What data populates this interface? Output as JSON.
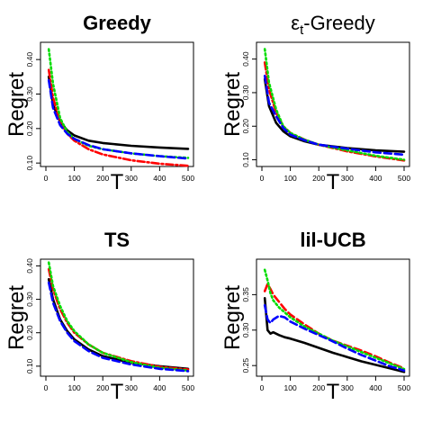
{
  "chart_data": [
    {
      "type": "line",
      "title": "Greedy",
      "xlabel": "T",
      "ylabel": "Regret",
      "xlim": [
        0,
        500
      ],
      "ylim": [
        0.09,
        0.45
      ],
      "xticks": [
        0,
        100,
        200,
        300,
        400,
        500
      ],
      "yticks": [
        0.1,
        0.2,
        0.3,
        0.4
      ],
      "x": [
        10,
        25,
        50,
        75,
        100,
        150,
        200,
        300,
        400,
        500
      ],
      "series": [
        {
          "color": "#000000",
          "dash": "solid",
          "values": [
            0.35,
            0.27,
            0.22,
            0.195,
            0.18,
            0.165,
            0.158,
            0.15,
            0.145,
            0.141
          ]
        },
        {
          "color": "#ff0000",
          "dash": "dashdot",
          "values": [
            0.37,
            0.29,
            0.22,
            0.185,
            0.165,
            0.14,
            0.125,
            0.108,
            0.098,
            0.092
          ]
        },
        {
          "color": "#00dd00",
          "dash": "dotted",
          "values": [
            0.43,
            0.33,
            0.23,
            0.19,
            0.17,
            0.15,
            0.14,
            0.128,
            0.12,
            0.115
          ]
        },
        {
          "color": "#0000ff",
          "dash": "dashed",
          "values": [
            0.34,
            0.26,
            0.21,
            0.185,
            0.17,
            0.152,
            0.14,
            0.128,
            0.12,
            0.113
          ]
        }
      ]
    },
    {
      "type": "line",
      "title": "ε",
      "title_sub": "t",
      "title_rest": "-Greedy",
      "xlabel": "T",
      "ylabel": "Regret",
      "xlim": [
        0,
        500
      ],
      "ylim": [
        0.08,
        0.45
      ],
      "xticks": [
        0,
        100,
        200,
        300,
        400,
        500
      ],
      "yticks": [
        0.1,
        0.2,
        0.3,
        0.4
      ],
      "x": [
        10,
        25,
        50,
        75,
        100,
        150,
        200,
        300,
        400,
        500
      ],
      "series": [
        {
          "color": "#000000",
          "dash": "solid",
          "values": [
            0.34,
            0.26,
            0.21,
            0.185,
            0.17,
            0.155,
            0.145,
            0.135,
            0.128,
            0.124
          ]
        },
        {
          "color": "#ff0000",
          "dash": "dashdot",
          "values": [
            0.39,
            0.31,
            0.24,
            0.2,
            0.18,
            0.16,
            0.145,
            0.125,
            0.11,
            0.098
          ]
        },
        {
          "color": "#00dd00",
          "dash": "dotted",
          "values": [
            0.43,
            0.33,
            0.25,
            0.2,
            0.18,
            0.16,
            0.145,
            0.128,
            0.112,
            0.1
          ]
        },
        {
          "color": "#0000ff",
          "dash": "dashed",
          "values": [
            0.35,
            0.27,
            0.23,
            0.195,
            0.175,
            0.158,
            0.145,
            0.133,
            0.122,
            0.115
          ]
        }
      ]
    },
    {
      "type": "line",
      "title": "TS",
      "xlabel": "T",
      "ylabel": "Regret",
      "xlim": [
        0,
        500
      ],
      "ylim": [
        0.07,
        0.42
      ],
      "xticks": [
        0,
        100,
        200,
        300,
        400,
        500
      ],
      "yticks": [
        0.1,
        0.2,
        0.3,
        0.4
      ],
      "x": [
        10,
        25,
        50,
        75,
        100,
        150,
        200,
        300,
        400,
        500
      ],
      "series": [
        {
          "color": "#000000",
          "dash": "solid",
          "values": [
            0.36,
            0.3,
            0.24,
            0.205,
            0.18,
            0.15,
            0.13,
            0.11,
            0.1,
            0.092
          ]
        },
        {
          "color": "#ff0000",
          "dash": "dashdot",
          "values": [
            0.39,
            0.33,
            0.27,
            0.23,
            0.2,
            0.165,
            0.14,
            0.115,
            0.098,
            0.09
          ]
        },
        {
          "color": "#00dd00",
          "dash": "dotted",
          "values": [
            0.41,
            0.34,
            0.28,
            0.235,
            0.205,
            0.165,
            0.14,
            0.112,
            0.095,
            0.087
          ]
        },
        {
          "color": "#0000ff",
          "dash": "dashed",
          "values": [
            0.35,
            0.29,
            0.235,
            0.2,
            0.175,
            0.145,
            0.125,
            0.105,
            0.092,
            0.085
          ]
        }
      ]
    },
    {
      "type": "line",
      "title": "lil-UCB",
      "xlabel": "T",
      "ylabel": "Regret",
      "xlim": [
        0,
        500
      ],
      "ylim": [
        0.235,
        0.4
      ],
      "xticks": [
        0,
        100,
        200,
        300,
        400,
        500
      ],
      "yticks": [
        0.25,
        0.3,
        0.35
      ],
      "x": [
        10,
        20,
        30,
        40,
        60,
        80,
        100,
        150,
        200,
        250,
        300,
        350,
        400,
        450,
        500
      ],
      "series": [
        {
          "color": "#000000",
          "dash": "solid",
          "values": [
            0.345,
            0.3,
            0.295,
            0.297,
            0.293,
            0.29,
            0.288,
            0.282,
            0.275,
            0.268,
            0.262,
            0.256,
            0.251,
            0.246,
            0.241
          ]
        },
        {
          "color": "#ff0000",
          "dash": "dashed",
          "values": [
            0.355,
            0.365,
            0.358,
            0.35,
            0.34,
            0.33,
            0.322,
            0.308,
            0.295,
            0.285,
            0.278,
            0.271,
            0.263,
            0.254,
            0.246
          ]
        },
        {
          "color": "#00dd00",
          "dash": "dotted",
          "values": [
            0.385,
            0.37,
            0.352,
            0.342,
            0.332,
            0.325,
            0.318,
            0.305,
            0.295,
            0.285,
            0.277,
            0.269,
            0.261,
            0.253,
            0.245
          ]
        },
        {
          "color": "#0000ff",
          "dash": "dashed",
          "values": [
            0.335,
            0.315,
            0.31,
            0.315,
            0.32,
            0.318,
            0.312,
            0.302,
            0.293,
            0.284,
            0.274,
            0.265,
            0.257,
            0.249,
            0.243
          ]
        }
      ]
    }
  ]
}
